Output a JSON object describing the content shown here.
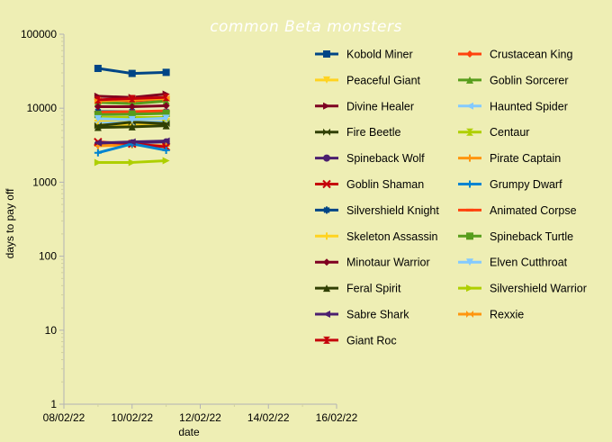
{
  "chart_data": {
    "type": "line",
    "title": "common Beta monsters",
    "xlabel": "date",
    "ylabel": "days to pay off",
    "y_scale": "log",
    "ylim": [
      1,
      100000
    ],
    "y_ticks": [
      "1",
      "10",
      "100",
      "1000",
      "10000",
      "100000"
    ],
    "xlim": [
      "2022-08-02",
      "2022-16-02"
    ],
    "x_tick_labels": [
      "08/02/22",
      "10/02/22",
      "12/02/22",
      "14/02/22",
      "16/02/22"
    ],
    "x": [
      "2022-09-02",
      "2022-10-02",
      "2022-11-02"
    ],
    "grid": false,
    "legend_placement": "right",
    "series": [
      {
        "name": "Kobold Miner",
        "color": "#004586",
        "marker": "square",
        "values": [
          34500,
          29500,
          30500
        ]
      },
      {
        "name": "Crustacean King",
        "color": "#ff420e",
        "marker": "diamond",
        "values": [
          13000,
          12500,
          13500
        ]
      },
      {
        "name": "Peaceful Giant",
        "color": "#ffd320",
        "marker": "triangle-down",
        "values": [
          6000,
          6000,
          6200
        ]
      },
      {
        "name": "Goblin Sorcerer",
        "color": "#579d1c",
        "marker": "triangle-up",
        "values": [
          12000,
          11500,
          12500
        ]
      },
      {
        "name": "Divine Healer",
        "color": "#7e0021",
        "marker": "triangle-right",
        "values": [
          14500,
          14000,
          15500
        ]
      },
      {
        "name": "Haunted Spider",
        "color": "#83caff",
        "marker": "triangle-left",
        "values": [
          6500,
          6500,
          6500
        ]
      },
      {
        "name": "Fire Beetle",
        "color": "#314004",
        "marker": "bowtie",
        "values": [
          5800,
          6500,
          6200
        ]
      },
      {
        "name": "Centaur",
        "color": "#aecf00",
        "marker": "hourglass",
        "values": [
          7500,
          7500,
          7500
        ]
      },
      {
        "name": "Spineback Wolf",
        "color": "#4b1f6f",
        "marker": "circle",
        "values": [
          3300,
          3400,
          3500
        ]
      },
      {
        "name": "Pirate Captain",
        "color": "#ff950e",
        "marker": "plus",
        "values": [
          3100,
          3200,
          3100
        ]
      },
      {
        "name": "Goblin Shaman",
        "color": "#c5000b",
        "marker": "x",
        "values": [
          3500,
          3300,
          3000
        ]
      },
      {
        "name": "Grumpy Dwarf",
        "color": "#0084d1",
        "marker": "plus",
        "values": [
          2500,
          3300,
          2700
        ]
      },
      {
        "name": "Silvershield Knight",
        "color": "#004586",
        "marker": "asterisk",
        "values": [
          9000,
          9000,
          9000
        ]
      },
      {
        "name": "Animated Corpse",
        "color": "#ff420e",
        "marker": "dash",
        "values": [
          8800,
          9000,
          9200
        ]
      },
      {
        "name": "Skeleton Assassin",
        "color": "#ffd320",
        "marker": "plus",
        "values": [
          6800,
          7000,
          7200
        ]
      },
      {
        "name": "Spineback Turtle",
        "color": "#579d1c",
        "marker": "square",
        "values": [
          8200,
          8300,
          8500
        ]
      },
      {
        "name": "Minotaur Warrior",
        "color": "#7e0021",
        "marker": "diamond",
        "values": [
          10500,
          10500,
          10800
        ]
      },
      {
        "name": "Elven Cutthroat",
        "color": "#83caff",
        "marker": "triangle-down",
        "values": [
          7200,
          7000,
          7300
        ]
      },
      {
        "name": "Feral Spirit",
        "color": "#314004",
        "marker": "triangle-up",
        "values": [
          5500,
          5600,
          5800
        ]
      },
      {
        "name": "Silvershield Warrior",
        "color": "#aecf00",
        "marker": "triangle-right",
        "values": [
          1850,
          1850,
          1950
        ]
      },
      {
        "name": "Sabre Shark",
        "color": "#4b1f6f",
        "marker": "triangle-left",
        "values": [
          3400,
          3500,
          3600
        ]
      },
      {
        "name": "Rexxie",
        "color": "#ff950e",
        "marker": "bowtie",
        "values": [
          12500,
          13000,
          13500
        ]
      },
      {
        "name": "Giant Roc",
        "color": "#c5000b",
        "marker": "hourglass",
        "values": [
          13000,
          13500,
          14000
        ]
      }
    ]
  }
}
